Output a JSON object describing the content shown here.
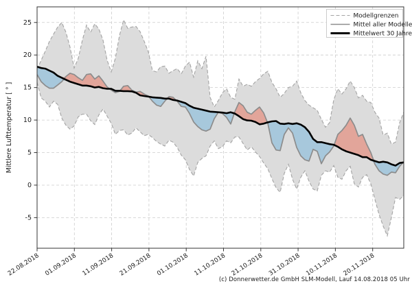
{
  "caption": "(c) Donnerwetter.de GmbH SLM-Modell, Lauf 14.08.2018 05 Uhr",
  "chart_data": {
    "type": "area",
    "title": "",
    "xlabel": "",
    "ylabel": "Mittlere Lufttemperatur [ ° ]",
    "grid": true,
    "legend_position": "top-right",
    "x_tick_labels": [
      "22.08.2018",
      "01.09.2018",
      "11.09.2018",
      "21.09.2018",
      "01.10.2018",
      "11.10.2018",
      "21.10.2018",
      "31.10.2018",
      "10.11.2018",
      "20.11.2018"
    ],
    "y_ticks": [
      -5,
      0,
      5,
      10,
      15,
      20,
      25
    ],
    "ylim": [
      -9.7,
      27.4
    ],
    "x_range_note": "90 evenly spaced samples from 22.08.2018 to 28.11.2018",
    "legend": [
      {
        "label": "Modellgrenzen",
        "stroke": "#a3a3a3",
        "dash": "5,3",
        "width": 1.1
      },
      {
        "label": "Mittel aller Modelle",
        "stroke": "#8c8c8c",
        "dash": "",
        "width": 1.6
      },
      {
        "label": "Mittelwert 30 Jahre",
        "stroke": "#000000",
        "dash": "",
        "width": 3.0
      }
    ],
    "series": [
      {
        "name": "Modellgrenzen (oben)",
        "role": "band-upper",
        "values": [
          17.8,
          19.2,
          20.6,
          22.1,
          23.2,
          24.3,
          25.0,
          23.5,
          21.2,
          18.0,
          19.5,
          22.3,
          24.6,
          23.5,
          24.8,
          24.0,
          22.3,
          19.2,
          17.4,
          19.5,
          23.0,
          25.4,
          24.1,
          24.3,
          24.4,
          23.6,
          22.1,
          20.5,
          17.6,
          17.4,
          18.2,
          18.3,
          17.2,
          17.6,
          17.9,
          17.1,
          18.3,
          18.9,
          16.6,
          19.1,
          17.9,
          19.8,
          13.5,
          12.0,
          13.0,
          14.2,
          14.8,
          13.5,
          13.2,
          16.3,
          15.2,
          15.5,
          15.2,
          15.9,
          16.4,
          17.1,
          17.5,
          15.8,
          14.8,
          13.5,
          14.1,
          15.0,
          15.2,
          16.0,
          14.2,
          13.0,
          12.3,
          11.9,
          11.5,
          10.1,
          8.9,
          9.6,
          13.1,
          14.8,
          14.0,
          14.8,
          16.0,
          15.0,
          13.4,
          13.8,
          12.9,
          12.7,
          11.2,
          10.3,
          7.7,
          8.0,
          6.3,
          6.6,
          9.6,
          11.2
        ]
      },
      {
        "name": "Modellgrenzen (unten)",
        "role": "band-lower",
        "values": [
          15.8,
          13.4,
          12.9,
          12.0,
          12.9,
          12.4,
          10.3,
          9.2,
          8.6,
          9.1,
          10.5,
          10.9,
          10.9,
          9.9,
          9.3,
          10.8,
          11.7,
          10.6,
          9.5,
          7.8,
          8.4,
          8.5,
          7.7,
          8.0,
          8.8,
          8.2,
          7.6,
          7.8,
          7.3,
          6.7,
          6.3,
          6.0,
          6.9,
          6.6,
          5.8,
          4.6,
          3.9,
          2.4,
          1.4,
          3.5,
          4.1,
          4.5,
          6.0,
          6.8,
          5.6,
          5.9,
          6.8,
          6.5,
          7.4,
          7.4,
          6.4,
          5.4,
          5.9,
          5.1,
          4.4,
          3.4,
          2.5,
          1.0,
          -0.4,
          -1.1,
          1.8,
          3.2,
          0.9,
          -0.6,
          1.2,
          2.2,
          0.6,
          -0.6,
          -0.9,
          1.5,
          2.2,
          2.0,
          3.0,
          1.2,
          0.9,
          2.2,
          2.9,
          0.2,
          -0.3,
          1.2,
          1.6,
          0.2,
          -2.2,
          -4.5,
          -6.3,
          -7.8,
          -5.0,
          -1.9,
          -2.2,
          -1.6
        ]
      },
      {
        "name": "Mittel aller Modelle",
        "role": "model-mean",
        "values": [
          17.0,
          15.9,
          15.3,
          14.9,
          14.9,
          15.4,
          15.9,
          16.7,
          17.2,
          17.0,
          16.5,
          16.1,
          17.0,
          17.1,
          16.3,
          16.8,
          16.0,
          15.1,
          14.6,
          14.2,
          14.4,
          15.2,
          15.3,
          14.6,
          14.3,
          14.4,
          14.0,
          13.7,
          12.9,
          12.3,
          12.1,
          12.9,
          13.6,
          13.5,
          12.9,
          12.1,
          12.0,
          11.0,
          9.7,
          9.0,
          8.5,
          8.3,
          8.6,
          10.2,
          11.2,
          11.0,
          10.4,
          9.4,
          11.3,
          12.7,
          12.2,
          11.2,
          10.9,
          11.5,
          12.0,
          11.1,
          9.5,
          6.5,
          5.4,
          5.3,
          7.8,
          8.8,
          8.0,
          5.8,
          4.5,
          3.9,
          3.7,
          5.5,
          5.2,
          3.3,
          4.5,
          5.1,
          6.0,
          7.8,
          8.4,
          9.2,
          10.3,
          9.2,
          7.5,
          7.8,
          6.3,
          5.0,
          3.2,
          2.2,
          1.7,
          1.5,
          2.0,
          1.9,
          2.9,
          3.6
        ]
      },
      {
        "name": "Mittelwert 30 Jahre",
        "role": "climate-mean",
        "values": [
          18.2,
          18.0,
          17.9,
          17.6,
          17.3,
          16.8,
          16.5,
          16.2,
          15.9,
          15.7,
          15.5,
          15.3,
          15.3,
          15.2,
          15.0,
          15.1,
          14.9,
          14.8,
          14.8,
          14.5,
          14.5,
          14.45,
          14.45,
          14.4,
          14.2,
          13.8,
          13.7,
          13.6,
          13.5,
          13.45,
          13.4,
          13.3,
          13.3,
          13.1,
          13.0,
          12.8,
          12.6,
          12.2,
          11.9,
          11.75,
          11.6,
          11.45,
          11.3,
          11.25,
          11.2,
          11.15,
          11.05,
          11.2,
          11.0,
          10.6,
          10.15,
          9.95,
          9.9,
          9.7,
          9.35,
          9.45,
          9.65,
          9.8,
          9.85,
          9.45,
          9.4,
          9.5,
          9.4,
          9.5,
          9.3,
          8.9,
          8.2,
          7.1,
          6.6,
          6.6,
          6.45,
          6.3,
          6.2,
          5.9,
          5.5,
          5.2,
          5.0,
          4.8,
          4.6,
          4.3,
          4.3,
          3.9,
          3.7,
          3.5,
          3.6,
          3.5,
          3.2,
          3.0,
          3.4,
          3.5
        ]
      }
    ],
    "colors": {
      "band_fill": "#dcdcdc",
      "band_edge": "#a3a3a3",
      "model_mean_line": "#8c8c8c",
      "climate_mean_line": "#000000",
      "warm_anomaly_fill": "rgba(231,121,101,0.55)",
      "cold_anomaly_fill": "rgba(134,188,219,0.62)",
      "grid": "#cccccc",
      "spine": "#333333",
      "text": "#1a1a1a",
      "legend_border": "#cccccc",
      "background": "#ffffff"
    }
  }
}
